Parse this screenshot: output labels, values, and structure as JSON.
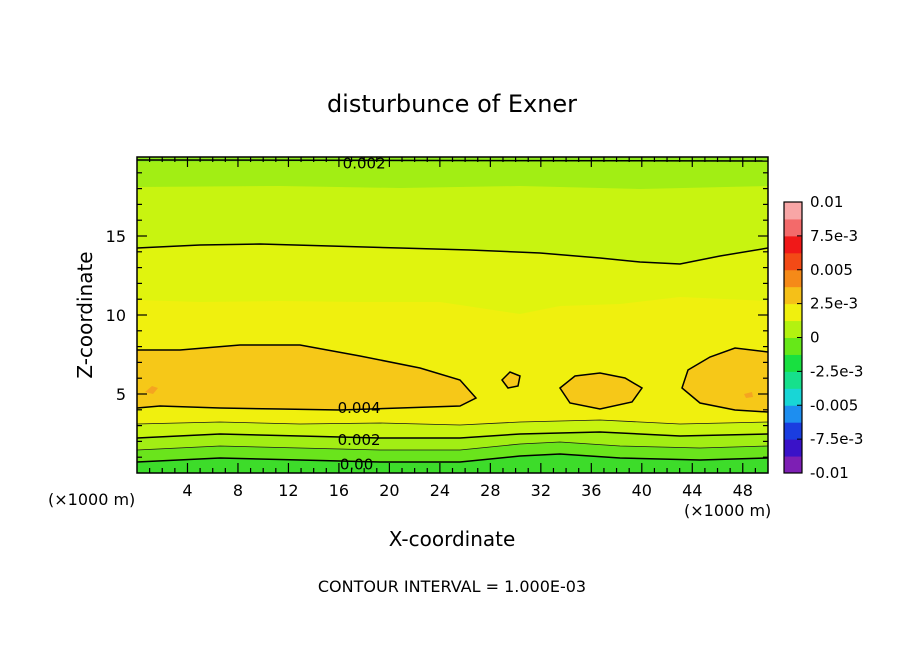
{
  "chart_data": {
    "type": "contour",
    "title": "disturbunce of Exner",
    "xlabel": "X-coordinate",
    "ylabel": "Z-coordinate",
    "x_unit_left": "(×1000 m)",
    "x_unit_right": "(×1000 m)",
    "footer": "CONTOUR INTERVAL = 1.000E-03",
    "xlim": [
      0,
      50
    ],
    "ylim": [
      0,
      20
    ],
    "x_ticks": [
      4,
      8,
      12,
      16,
      20,
      24,
      28,
      32,
      36,
      40,
      44,
      48
    ],
    "x_tick_labels": [
      "4",
      "8",
      "12",
      "16",
      "20",
      "24",
      "28",
      "32",
      "36",
      "40",
      "44",
      "48"
    ],
    "y_ticks": [
      5,
      10,
      15
    ],
    "y_tick_labels": [
      "5",
      "10",
      "15"
    ],
    "contour_interval": 0.001,
    "contour_labels": [
      {
        "text": "0.002",
        "x": 18,
        "z": 19.6
      },
      {
        "text": "0.004",
        "x": 17.6,
        "z": 4.1
      },
      {
        "text": "0.002",
        "x": 17.6,
        "z": 2.1
      },
      {
        "text": "0.00",
        "x": 17.4,
        "z": 0.55
      }
    ],
    "colorbar": {
      "colors": [
        "#7d1fb4",
        "#3a12c8",
        "#1a3de0",
        "#1d8ef0",
        "#18d6d6",
        "#16e08c",
        "#18e040",
        "#66e818",
        "#b3f210",
        "#f0f00e",
        "#f5c018",
        "#f58a18",
        "#f34a16",
        "#f01818",
        "#f36a6a",
        "#f8a6a6"
      ],
      "tick_labels": [
        "0.01",
        "7.5e-3",
        "0.005",
        "2.5e-3",
        "0",
        "-2.5e-3",
        "-0.005",
        "-7.5e-3",
        "-0.01"
      ],
      "tick_values": [
        0.01,
        0.0075,
        0.005,
        0.0025,
        0,
        -0.0025,
        -0.005,
        -0.0075,
        -0.01
      ],
      "range": [
        -0.01,
        0.01
      ]
    }
  }
}
